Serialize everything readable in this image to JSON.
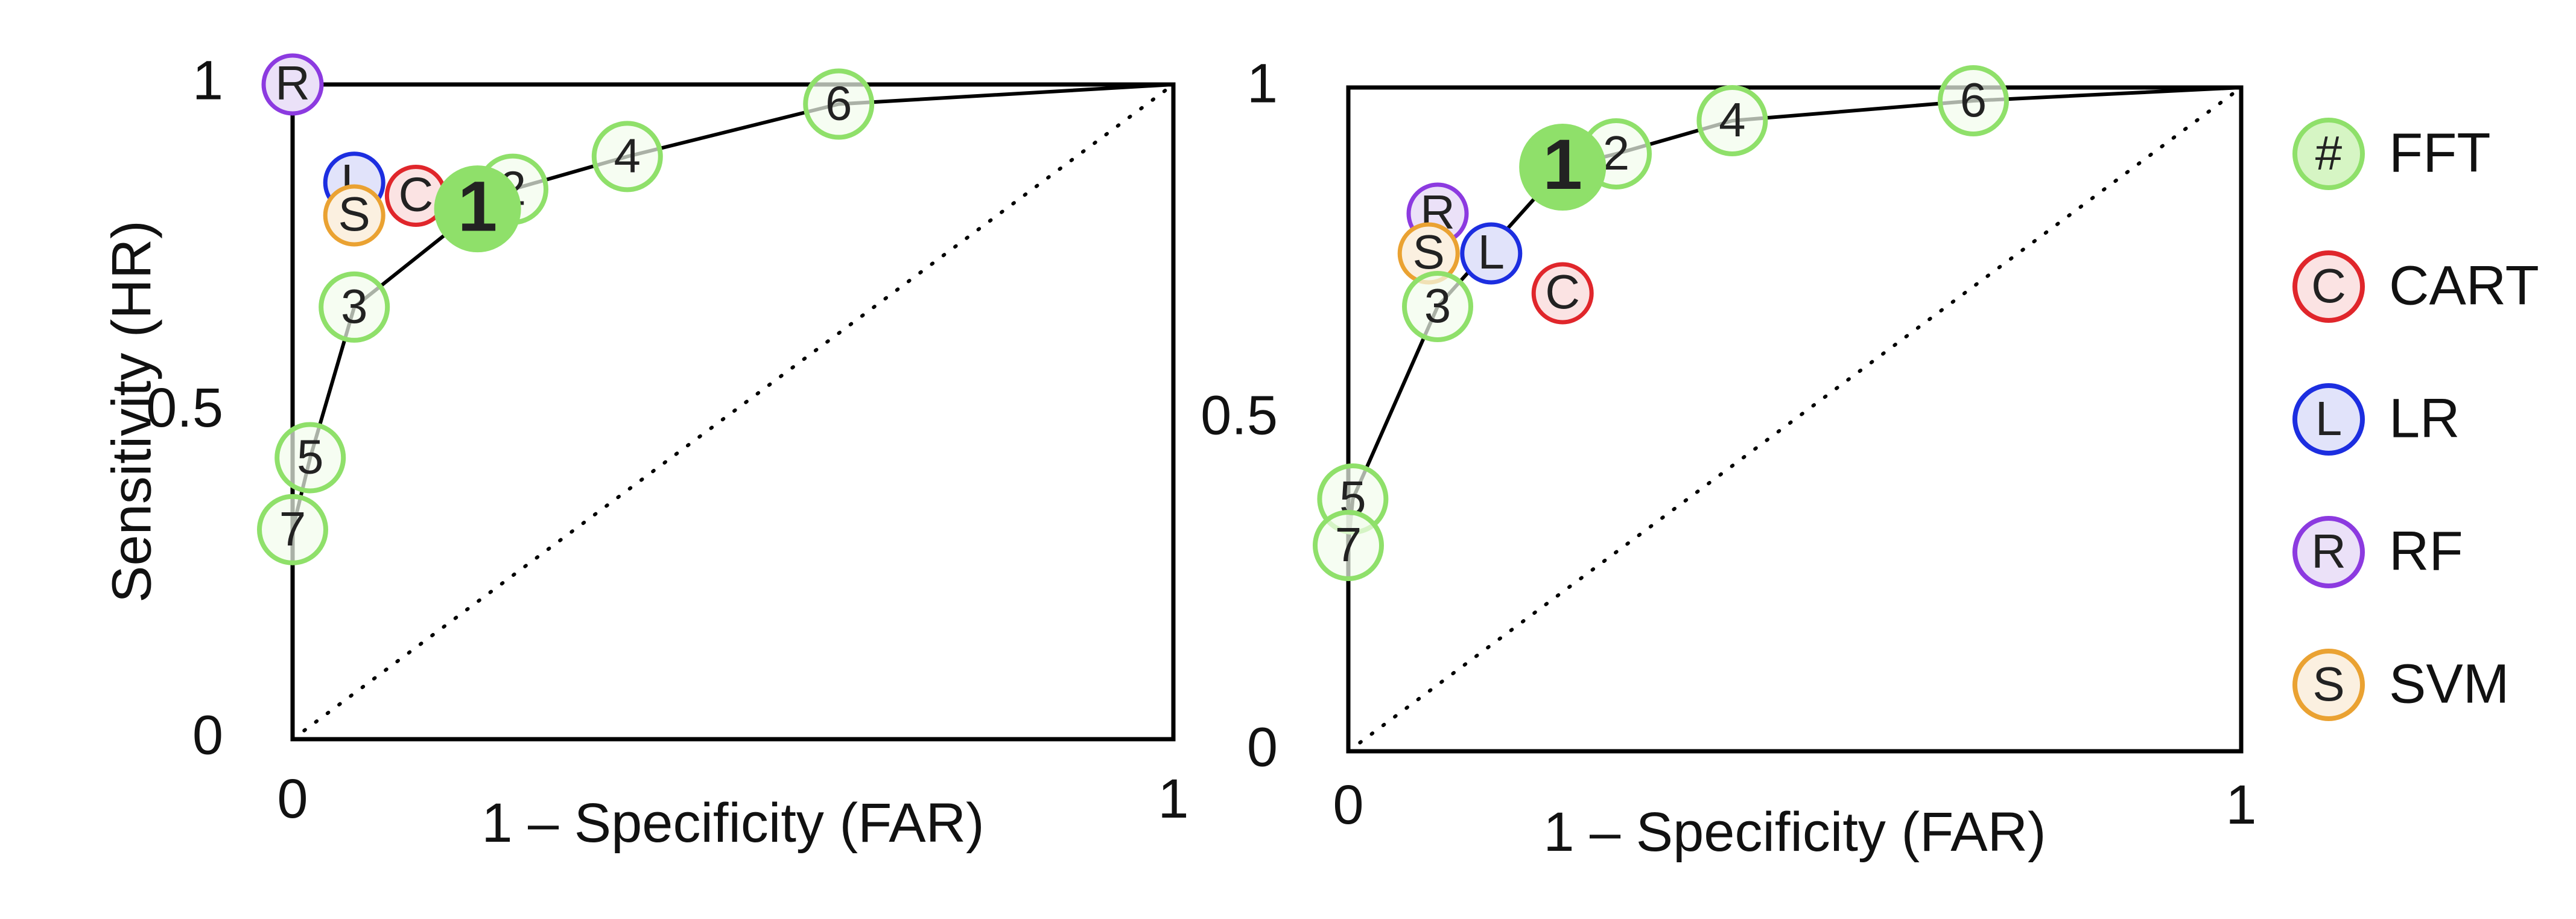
{
  "chart_data": [
    {
      "type": "scatter",
      "title": "",
      "xlabel": "1 – Specificity (FAR)",
      "ylabel": "Sensitivity (HR)",
      "xlim": [
        0,
        1
      ],
      "ylim": [
        0,
        1
      ],
      "x_ticks": [
        "0",
        "1"
      ],
      "y_ticks": [
        "0",
        "0.5",
        "1"
      ],
      "reference_line": "diagonal",
      "roc_curve": [
        [
          0,
          0.32
        ],
        [
          0.02,
          0.43
        ],
        [
          0.07,
          0.66
        ],
        [
          0.21,
          0.81
        ],
        [
          0.25,
          0.84
        ],
        [
          0.38,
          0.89
        ],
        [
          0.62,
          0.97
        ],
        [
          1,
          1
        ]
      ],
      "fft_points": [
        {
          "label": "1",
          "x": 0.21,
          "y": 0.81,
          "selected": true
        },
        {
          "label": "2",
          "x": 0.25,
          "y": 0.84
        },
        {
          "label": "3",
          "x": 0.07,
          "y": 0.66
        },
        {
          "label": "4",
          "x": 0.38,
          "y": 0.89
        },
        {
          "label": "5",
          "x": 0.02,
          "y": 0.43
        },
        {
          "label": "6",
          "x": 0.62,
          "y": 0.97
        },
        {
          "label": "7",
          "x": 0,
          "y": 0.32
        }
      ],
      "model_points": [
        {
          "label": "R",
          "model": "RF",
          "x": 0,
          "y": 1
        },
        {
          "label": "L",
          "model": "LR",
          "x": 0.07,
          "y": 0.85
        },
        {
          "label": "C",
          "model": "CART",
          "x": 0.14,
          "y": 0.83
        },
        {
          "label": "S",
          "model": "SVM",
          "x": 0.07,
          "y": 0.8
        }
      ]
    },
    {
      "type": "scatter",
      "title": "",
      "xlabel": "1 – Specificity (FAR)",
      "ylabel": "",
      "xlim": [
        0,
        1
      ],
      "ylim": [
        0,
        1
      ],
      "x_ticks": [
        "0",
        "1"
      ],
      "y_ticks": [
        "0",
        "0.5",
        "1"
      ],
      "reference_line": "diagonal",
      "roc_curve": [
        [
          0,
          0.31
        ],
        [
          0.005,
          0.38
        ],
        [
          0.1,
          0.67
        ],
        [
          0.24,
          0.88
        ],
        [
          0.3,
          0.9
        ],
        [
          0.43,
          0.95
        ],
        [
          0.7,
          0.98
        ],
        [
          1,
          1
        ]
      ],
      "fft_points": [
        {
          "label": "1",
          "x": 0.24,
          "y": 0.88,
          "selected": true
        },
        {
          "label": "2",
          "x": 0.3,
          "y": 0.9
        },
        {
          "label": "3",
          "x": 0.1,
          "y": 0.67
        },
        {
          "label": "4",
          "x": 0.43,
          "y": 0.95
        },
        {
          "label": "5",
          "x": 0.005,
          "y": 0.38
        },
        {
          "label": "6",
          "x": 0.7,
          "y": 0.98
        },
        {
          "label": "7",
          "x": 0,
          "y": 0.31
        }
      ],
      "model_points": [
        {
          "label": "R",
          "model": "RF",
          "x": 0.1,
          "y": 0.81
        },
        {
          "label": "L",
          "model": "LR",
          "x": 0.16,
          "y": 0.75
        },
        {
          "label": "C",
          "model": "CART",
          "x": 0.24,
          "y": 0.69
        },
        {
          "label": "S",
          "model": "SVM",
          "x": 0.09,
          "y": 0.75
        }
      ]
    }
  ],
  "legend": {
    "placement": "right",
    "items": [
      {
        "symbol": "#",
        "name": "FFT",
        "stroke": "#8fe06a",
        "fill": "#d6f5c4"
      },
      {
        "symbol": "C",
        "name": "CART",
        "stroke": "#e0262b",
        "fill": "#fbe3e3"
      },
      {
        "symbol": "L",
        "name": "LR",
        "stroke": "#1c2ee0",
        "fill": "#e1e3fa"
      },
      {
        "symbol": "R",
        "name": "RF",
        "stroke": "#8c3ae0",
        "fill": "#ebe1f8"
      },
      {
        "symbol": "S",
        "name": "SVM",
        "stroke": "#eaa232",
        "fill": "#fbf0e0"
      }
    ]
  },
  "colors": {
    "fft_stroke": "#8fe06a",
    "fft_fill": "#f2fcec",
    "fft_selected_fill": "#8fe06a",
    "axis": "#000000"
  }
}
